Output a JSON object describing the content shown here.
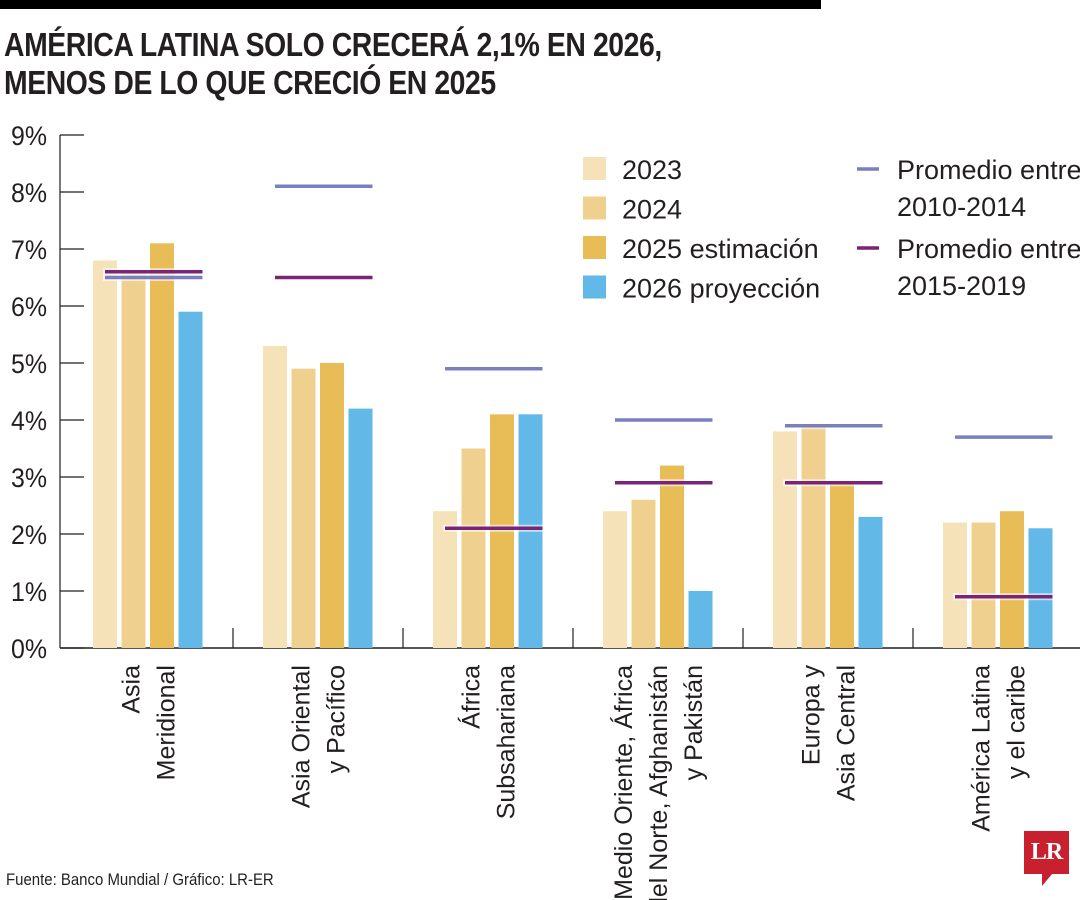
{
  "header": {
    "title_line1": "AMÉRICA LATINA SOLO CRECERÁ 2,1% EN 2026,",
    "title_line2": "MENOS DE LO QUE CRECIÓ EN 2025"
  },
  "footer": {
    "source": "Fuente: Banco Mundial / Gráfico: LR-ER",
    "logo": "LR"
  },
  "chart_data": {
    "type": "bar",
    "title": "AMÉRICA LATINA SOLO CRECERÁ 2,1% EN 2026, MENOS DE LO QUE CRECIÓ EN 2025",
    "xlabel": "",
    "ylabel": "",
    "ylim": [
      0,
      9
    ],
    "yticks": [
      "0%",
      "1%",
      "2%",
      "3%",
      "4%",
      "5%",
      "6%",
      "7%",
      "8%",
      "9%"
    ],
    "grid": false,
    "legend_position": "top-right",
    "categories": [
      [
        "Asia",
        "Meridional"
      ],
      [
        "Asia Oriental",
        "y Pacífico"
      ],
      [
        "África",
        "Subsahariana"
      ],
      [
        "Medio Oriente, África",
        "del Norte, Afghanistán",
        "y Pakistán"
      ],
      [
        "Europa y",
        "Asia Central"
      ],
      [
        "América Latina",
        "y el caribe"
      ]
    ],
    "series": [
      {
        "name": "2023",
        "kind": "bar",
        "color": "#f6e2b8",
        "values": [
          6.8,
          5.3,
          2.4,
          2.4,
          3.8,
          2.2
        ]
      },
      {
        "name": "2024",
        "kind": "bar",
        "color": "#efd08e",
        "values": [
          6.6,
          4.9,
          3.5,
          2.6,
          3.9,
          2.2
        ]
      },
      {
        "name": "2025 estimación",
        "kind": "bar",
        "color": "#e8bd58",
        "values": [
          7.1,
          5.0,
          4.1,
          3.2,
          2.9,
          2.4
        ]
      },
      {
        "name": "2026 proyección",
        "kind": "bar",
        "color": "#62b8e7",
        "values": [
          5.9,
          4.2,
          4.1,
          1.0,
          2.3,
          2.1
        ]
      }
    ],
    "lines": [
      {
        "name": "Promedio entre 2010-2014",
        "label_lines": [
          "Promedio entre",
          "2010-2014"
        ],
        "color": "#7b7fbd",
        "values": [
          6.5,
          8.1,
          4.9,
          4.0,
          3.9,
          3.7
        ]
      },
      {
        "name": "Promedio entre 2015-2019",
        "label_lines": [
          "Promedio entre",
          "2015-2019"
        ],
        "color": "#7a2477",
        "values": [
          6.6,
          6.5,
          2.1,
          2.9,
          2.9,
          0.9
        ]
      }
    ]
  }
}
